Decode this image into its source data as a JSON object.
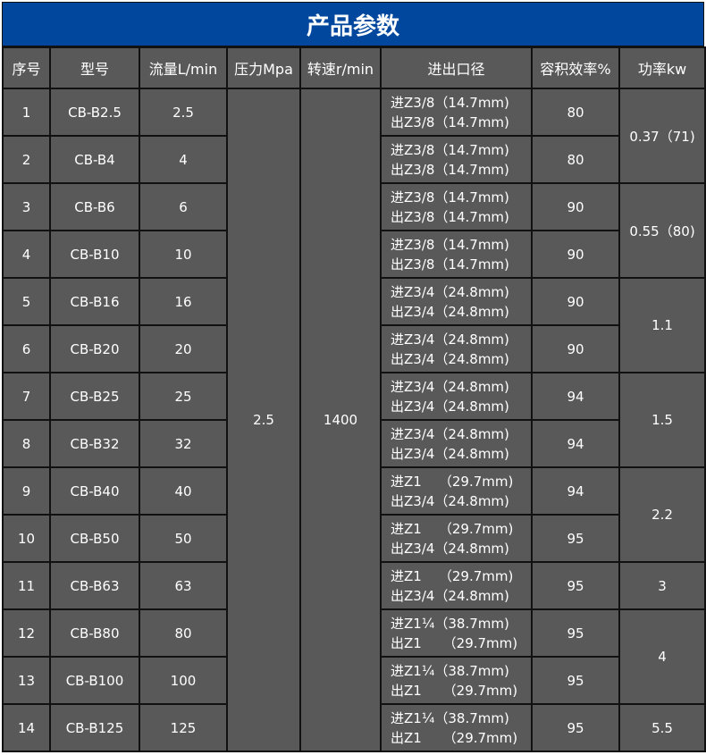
{
  "title": "产品参数",
  "headers": [
    "序号",
    "型号",
    "流量L/min",
    "压力Mpa",
    "转速r/min",
    "进出口径",
    "容积效率%",
    "功率kw"
  ],
  "pressure": "2.5",
  "speed": "1400",
  "rows": [
    {
      "no": "1",
      "model": "CB-B2.5",
      "flow": "2.5",
      "port_in": "进Z3/8（14.7mm)",
      "port_out": "出Z3/8（14.7mm)",
      "eff": "80"
    },
    {
      "no": "2",
      "model": "CB-B4",
      "flow": "4",
      "port_in": "进Z3/8（14.7mm)",
      "port_out": "出Z3/8（14.7mm)",
      "eff": "80"
    },
    {
      "no": "3",
      "model": "CB-B6",
      "flow": "6",
      "port_in": "进Z3/8（14.7mm)",
      "port_out": "出Z3/8（14.7mm)",
      "eff": "90"
    },
    {
      "no": "4",
      "model": "CB-B10",
      "flow": "10",
      "port_in": "进Z3/8（14.7mm)",
      "port_out": "出Z3/8（14.7mm)",
      "eff": "90"
    },
    {
      "no": "5",
      "model": "CB-B16",
      "flow": "16",
      "port_in": "进Z3/4（24.8mm)",
      "port_out": "出Z3/4（24.8mm)",
      "eff": "90"
    },
    {
      "no": "6",
      "model": "CB-B20",
      "flow": "20",
      "port_in": "进Z3/4（24.8mm)",
      "port_out": "出Z3/4（24.8mm)",
      "eff": "90"
    },
    {
      "no": "7",
      "model": "CB-B25",
      "flow": "25",
      "port_in": "进Z3/4（24.8mm)",
      "port_out": "出Z3/4（24.8mm)",
      "eff": "94"
    },
    {
      "no": "8",
      "model": "CB-B32",
      "flow": "32",
      "port_in": "进Z3/4（24.8mm)",
      "port_out": "出Z3/4（24.8mm)",
      "eff": "94"
    },
    {
      "no": "9",
      "model": "CB-B40",
      "flow": "40",
      "port_in": "进Z1    （29.7mm)",
      "port_out": "出Z3/4（24.8mm)",
      "eff": "94"
    },
    {
      "no": "10",
      "model": "CB-B50",
      "flow": "50",
      "port_in": "进Z1    （29.7mm)",
      "port_out": "出Z3/4（24.8mm)",
      "eff": "95"
    },
    {
      "no": "11",
      "model": "CB-B63",
      "flow": "63",
      "port_in": "进Z1    （29.7mm)",
      "port_out": "出Z3/4（24.8mm)",
      "eff": "95"
    },
    {
      "no": "12",
      "model": "CB-B80",
      "flow": "80",
      "port_in": "进Z1¼（38.7mm)",
      "port_out": "出Z1     （29.7mm)",
      "eff": "95"
    },
    {
      "no": "13",
      "model": "CB-B100",
      "flow": "100",
      "port_in": "进Z1¼（38.7mm)",
      "port_out": "出Z1     （29.7mm)",
      "eff": "95"
    },
    {
      "no": "14",
      "model": "CB-B125",
      "flow": "125",
      "port_in": "进Z1¼（38.7mm)",
      "port_out": "出Z1     （29.7mm)",
      "eff": "95"
    }
  ],
  "power_groups": [
    {
      "value": "0.37（71)",
      "rows": 2
    },
    {
      "value": "0.55（80)",
      "rows": 2
    },
    {
      "value": "1.1",
      "rows": 2
    },
    {
      "value": "1.5",
      "rows": 2
    },
    {
      "value": "2.2",
      "rows": 2
    },
    {
      "value": "3",
      "rows": 1
    },
    {
      "value": "4",
      "rows": 2
    },
    {
      "value": "5.5",
      "rows": 1
    }
  ],
  "colors": {
    "title_bg": "#00479d",
    "cell_bg": "#595959",
    "border": "#111111",
    "text": "#ffffff"
  }
}
